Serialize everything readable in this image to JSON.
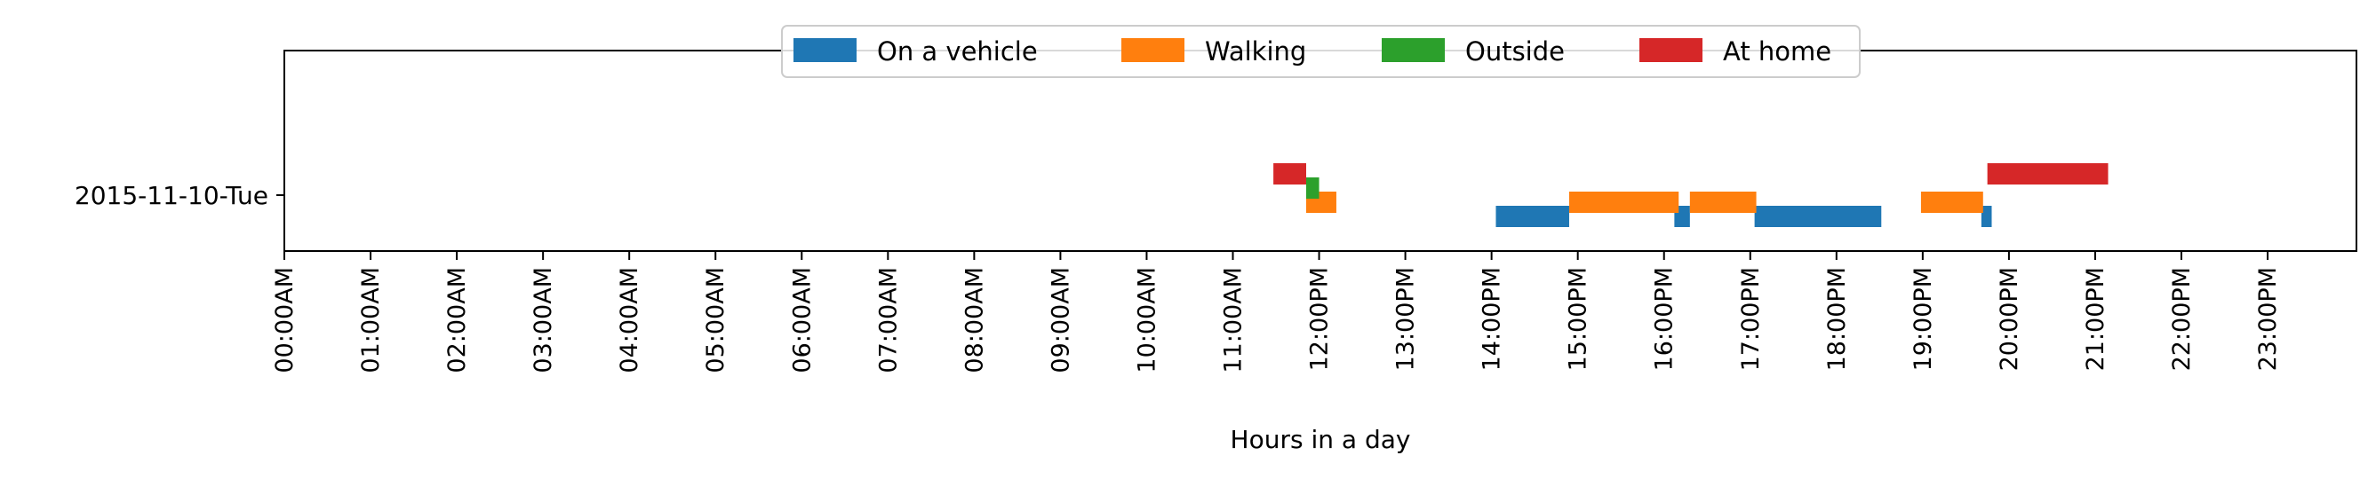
{
  "chart_data": {
    "type": "broken-bar-timeline",
    "xlabel": "Hours in a day",
    "ylabel": "",
    "xlim": [
      0,
      24
    ],
    "x_unit": "hours",
    "rows": [
      "2015-11-10-Tue"
    ],
    "x_ticks": [
      {
        "value": 0,
        "label": "00:00AM"
      },
      {
        "value": 1,
        "label": "01:00AM"
      },
      {
        "value": 2,
        "label": "02:00AM"
      },
      {
        "value": 3,
        "label": "03:00AM"
      },
      {
        "value": 4,
        "label": "04:00AM"
      },
      {
        "value": 5,
        "label": "05:00AM"
      },
      {
        "value": 6,
        "label": "06:00AM"
      },
      {
        "value": 7,
        "label": "07:00AM"
      },
      {
        "value": 8,
        "label": "08:00AM"
      },
      {
        "value": 9,
        "label": "09:00AM"
      },
      {
        "value": 10,
        "label": "10:00AM"
      },
      {
        "value": 11,
        "label": "11:00AM"
      },
      {
        "value": 12,
        "label": "12:00PM"
      },
      {
        "value": 13,
        "label": "13:00PM"
      },
      {
        "value": 14,
        "label": "14:00PM"
      },
      {
        "value": 15,
        "label": "15:00PM"
      },
      {
        "value": 16,
        "label": "16:00PM"
      },
      {
        "value": 17,
        "label": "17:00PM"
      },
      {
        "value": 18,
        "label": "18:00PM"
      },
      {
        "value": 19,
        "label": "19:00PM"
      },
      {
        "value": 20,
        "label": "20:00PM"
      },
      {
        "value": 21,
        "label": "21:00PM"
      },
      {
        "value": 22,
        "label": "22:00PM"
      },
      {
        "value": 23,
        "label": "23:00PM"
      }
    ],
    "legend_position": "top-center",
    "series": [
      {
        "name": "On a vehicle",
        "color": "#1f77b4",
        "segments": [
          [
            14.05,
            14.9
          ],
          [
            16.12,
            16.3
          ],
          [
            17.05,
            18.52
          ],
          [
            19.68,
            19.8
          ]
        ]
      },
      {
        "name": "Walking",
        "color": "#ff7f0e",
        "segments": [
          [
            11.85,
            12.2
          ],
          [
            14.9,
            16.17
          ],
          [
            16.3,
            17.07
          ],
          [
            18.98,
            19.7
          ]
        ]
      },
      {
        "name": "Outside",
        "color": "#2ca02c",
        "segments": [
          [
            11.85,
            12.0
          ]
        ]
      },
      {
        "name": "At home",
        "color": "#d62728",
        "segments": [
          [
            11.47,
            11.85
          ],
          [
            19.75,
            21.15
          ]
        ]
      }
    ]
  }
}
